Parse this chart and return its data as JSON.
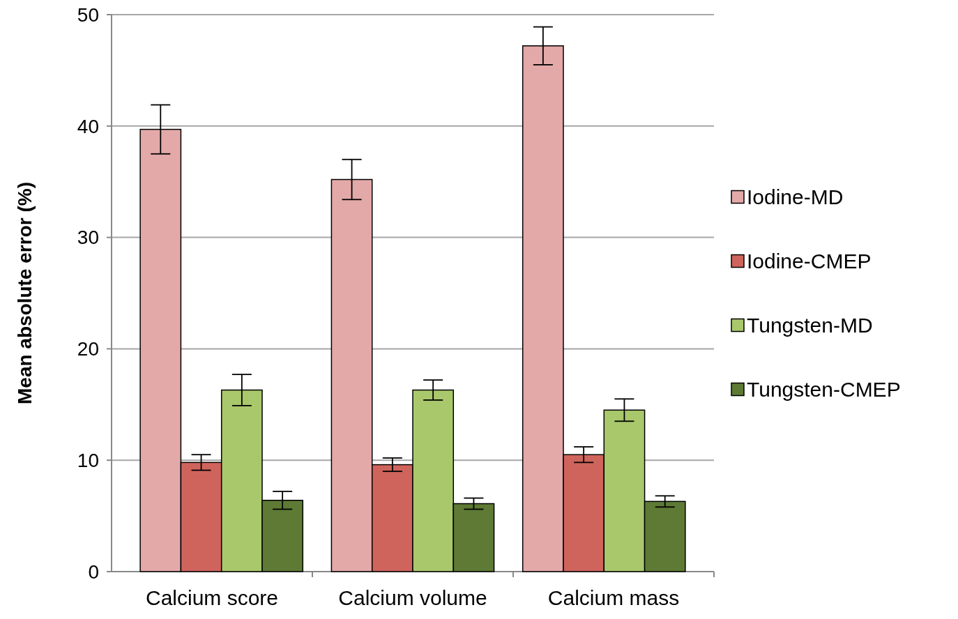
{
  "chart_data": {
    "type": "bar",
    "ylabel": "Mean absolute error (%)",
    "categories": [
      "Calcium score",
      "Calcium volume",
      "Calcium mass"
    ],
    "series": [
      {
        "name": "Iodine-MD",
        "color": "#e3a9a8",
        "values": [
          39.7,
          35.2,
          47.2
        ],
        "errors": [
          2.2,
          1.8,
          1.7
        ]
      },
      {
        "name": "Iodine-CMEP",
        "color": "#cf645c",
        "values": [
          9.8,
          9.6,
          10.5
        ],
        "errors": [
          0.7,
          0.6,
          0.7
        ]
      },
      {
        "name": "Tungsten-MD",
        "color": "#a9c86c",
        "values": [
          16.3,
          16.3,
          14.5
        ],
        "errors": [
          1.4,
          0.9,
          1.0
        ]
      },
      {
        "name": "Tungsten-CMEP",
        "color": "#5e7a35",
        "values": [
          6.4,
          6.1,
          6.3
        ],
        "errors": [
          0.8,
          0.5,
          0.5
        ]
      }
    ],
    "ylim": [
      0,
      50
    ],
    "yticks": [
      0,
      10,
      20,
      30,
      40,
      50
    ],
    "grid": "y",
    "legend": "right"
  }
}
